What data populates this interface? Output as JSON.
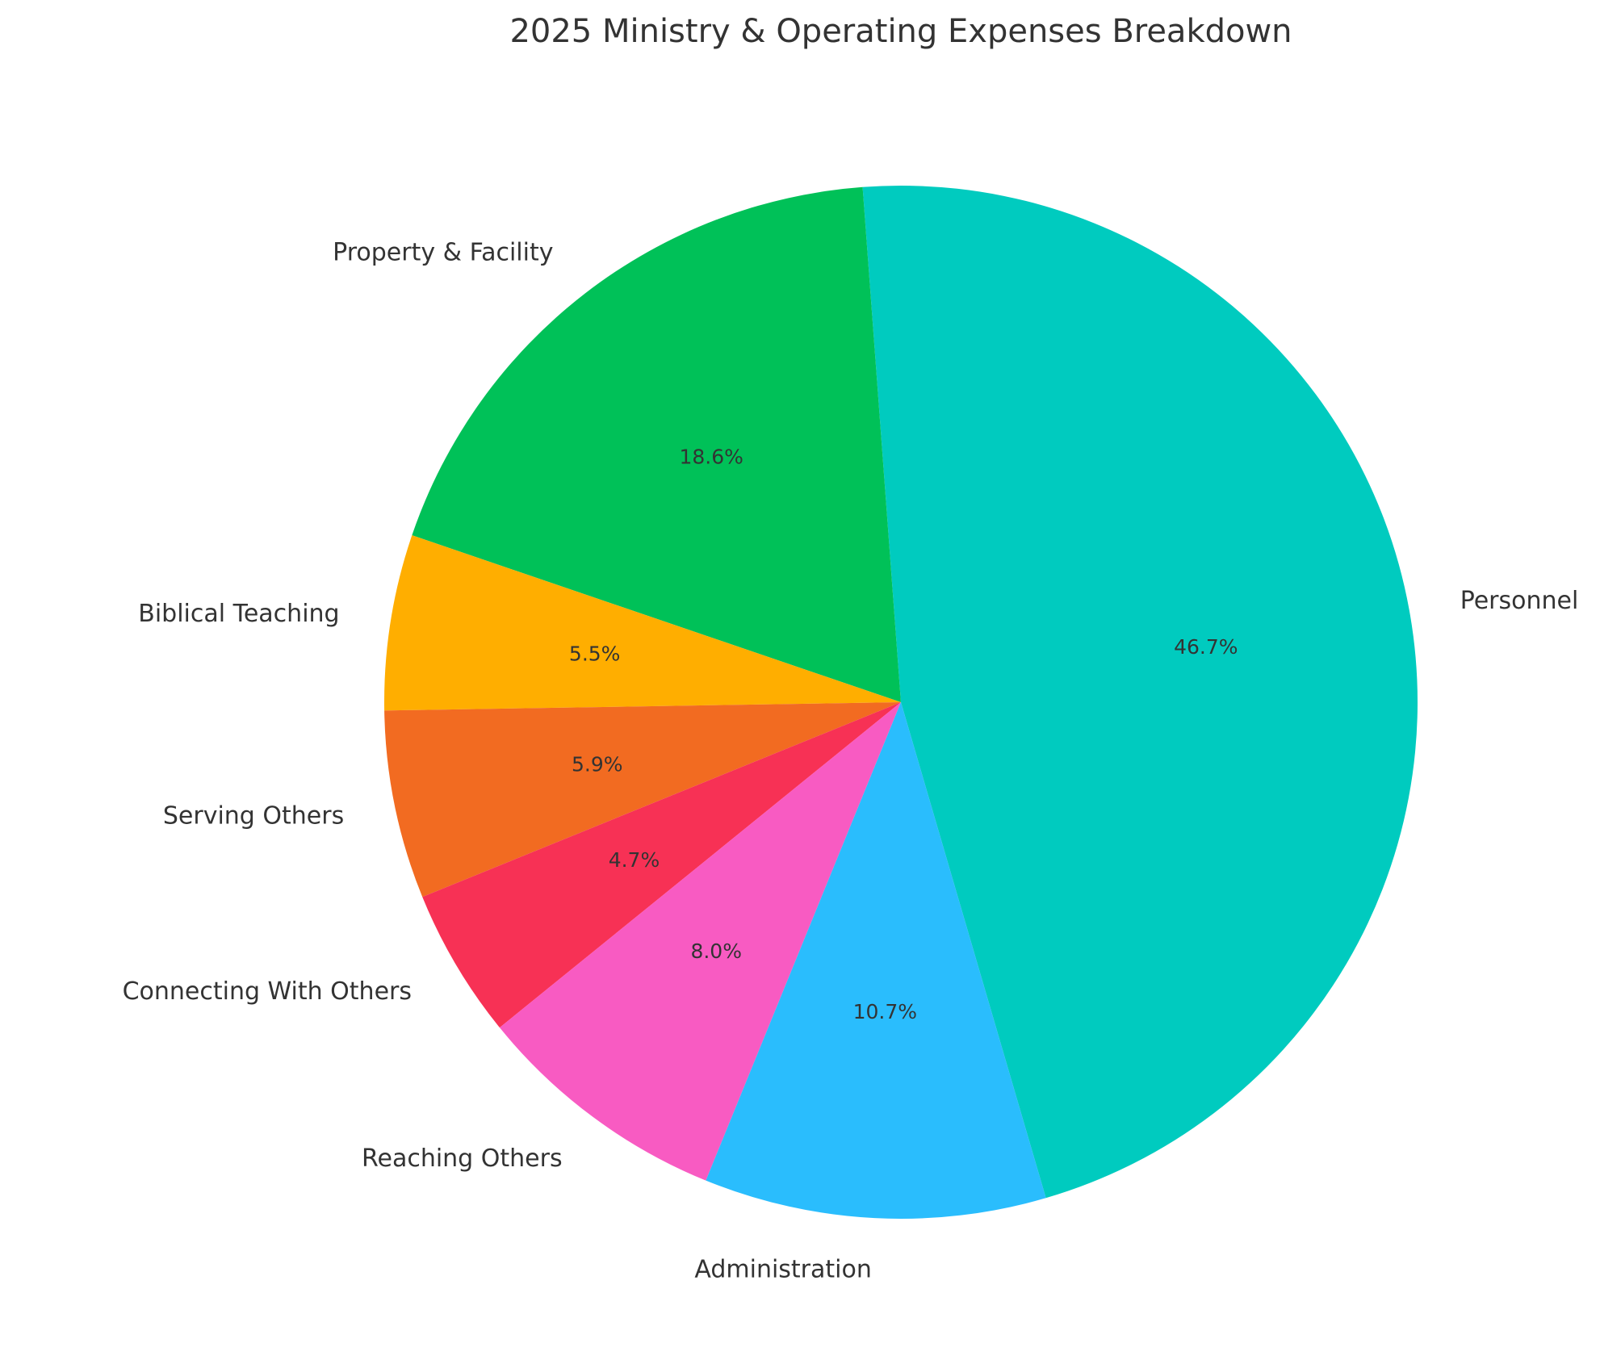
{
  "chart_data": {
    "type": "pie",
    "title": "2025 Ministry & Operating Expenses Breakdown",
    "slices": [
      {
        "label": "Personnel",
        "value": 46.7,
        "pct_label": "46.7%",
        "color": "#00CBBF"
      },
      {
        "label": "Property & Facility",
        "value": 18.6,
        "pct_label": "18.6%",
        "color": "#00C158"
      },
      {
        "label": "Biblical Teaching",
        "value": 5.5,
        "pct_label": "5.5%",
        "color": "#FFAE00"
      },
      {
        "label": "Serving Others",
        "value": 5.9,
        "pct_label": "5.9%",
        "color": "#F26B21"
      },
      {
        "label": "Connecting With Others",
        "value": 4.7,
        "pct_label": "4.7%",
        "color": "#F73155"
      },
      {
        "label": "Reaching Others",
        "value": 8.0,
        "pct_label": "8.0%",
        "color": "#F85BC2"
      },
      {
        "label": "Administration",
        "value": 10.7,
        "pct_label": "10.7%",
        "color": "#2ABDFD"
      }
    ],
    "legend": "none"
  }
}
